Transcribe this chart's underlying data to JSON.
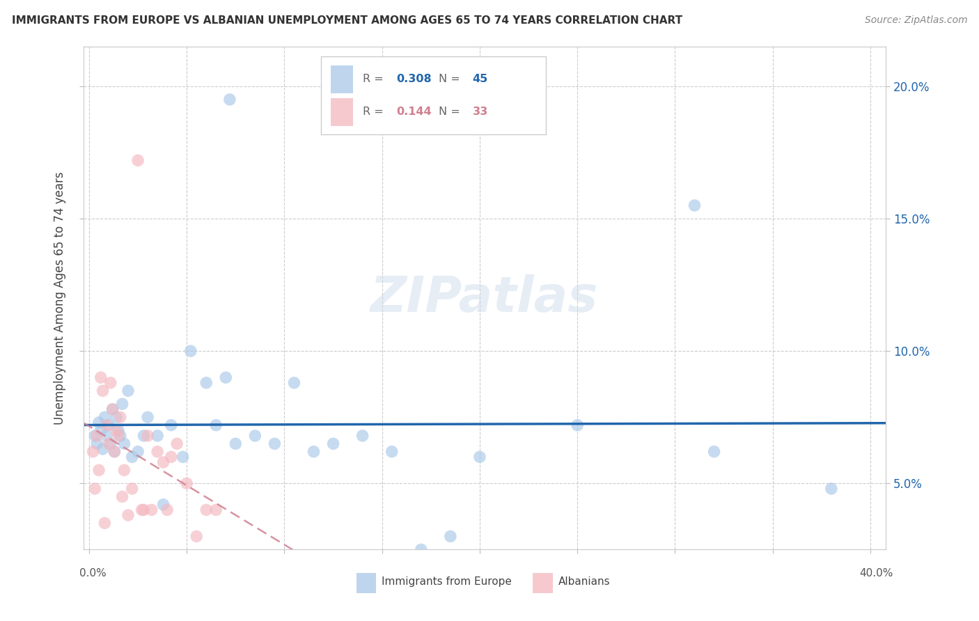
{
  "title": "IMMIGRANTS FROM EUROPE VS ALBANIAN UNEMPLOYMENT AMONG AGES 65 TO 74 YEARS CORRELATION CHART",
  "source": "Source: ZipAtlas.com",
  "ylabel": "Unemployment Among Ages 65 to 74 years",
  "xlim": [
    -0.003,
    0.408
  ],
  "ylim": [
    0.025,
    0.215
  ],
  "blue_color": "#a8c8e8",
  "pink_color": "#f4b8c0",
  "blue_line_color": "#2166ac",
  "pink_line_color": "#d08090",
  "blue_R": "0.308",
  "blue_N": "45",
  "pink_R": "0.144",
  "pink_N": "33",
  "watermark": "ZIPatlas",
  "blue_x": [
    0.003,
    0.004,
    0.005,
    0.006,
    0.007,
    0.008,
    0.009,
    0.01,
    0.011,
    0.012,
    0.013,
    0.014,
    0.015,
    0.016,
    0.017,
    0.018,
    0.02,
    0.022,
    0.025,
    0.028,
    0.03,
    0.035,
    0.038,
    0.042,
    0.048,
    0.052,
    0.06,
    0.065,
    0.07,
    0.075,
    0.085,
    0.095,
    0.105,
    0.115,
    0.125,
    0.14,
    0.155,
    0.17,
    0.185,
    0.2,
    0.072,
    0.25,
    0.31,
    0.38,
    0.32
  ],
  "blue_y": [
    0.068,
    0.065,
    0.073,
    0.07,
    0.063,
    0.075,
    0.068,
    0.072,
    0.065,
    0.078,
    0.062,
    0.075,
    0.07,
    0.068,
    0.08,
    0.065,
    0.085,
    0.06,
    0.062,
    0.068,
    0.075,
    0.068,
    0.042,
    0.072,
    0.06,
    0.1,
    0.088,
    0.072,
    0.09,
    0.065,
    0.068,
    0.065,
    0.088,
    0.062,
    0.065,
    0.068,
    0.062,
    0.025,
    0.03,
    0.06,
    0.195,
    0.072,
    0.155,
    0.048,
    0.062
  ],
  "pink_x": [
    0.002,
    0.003,
    0.004,
    0.005,
    0.006,
    0.007,
    0.008,
    0.009,
    0.01,
    0.011,
    0.012,
    0.013,
    0.014,
    0.015,
    0.016,
    0.017,
    0.018,
    0.02,
    0.022,
    0.025,
    0.027,
    0.03,
    0.032,
    0.035,
    0.038,
    0.042,
    0.045,
    0.05,
    0.055,
    0.06,
    0.065,
    0.04,
    0.028
  ],
  "pink_y": [
    0.062,
    0.048,
    0.068,
    0.055,
    0.09,
    0.085,
    0.035,
    0.072,
    0.065,
    0.088,
    0.078,
    0.062,
    0.07,
    0.068,
    0.075,
    0.045,
    0.055,
    0.038,
    0.048,
    0.172,
    0.04,
    0.068,
    0.04,
    0.062,
    0.058,
    0.06,
    0.065,
    0.05,
    0.03,
    0.04,
    0.04,
    0.04,
    0.04
  ]
}
